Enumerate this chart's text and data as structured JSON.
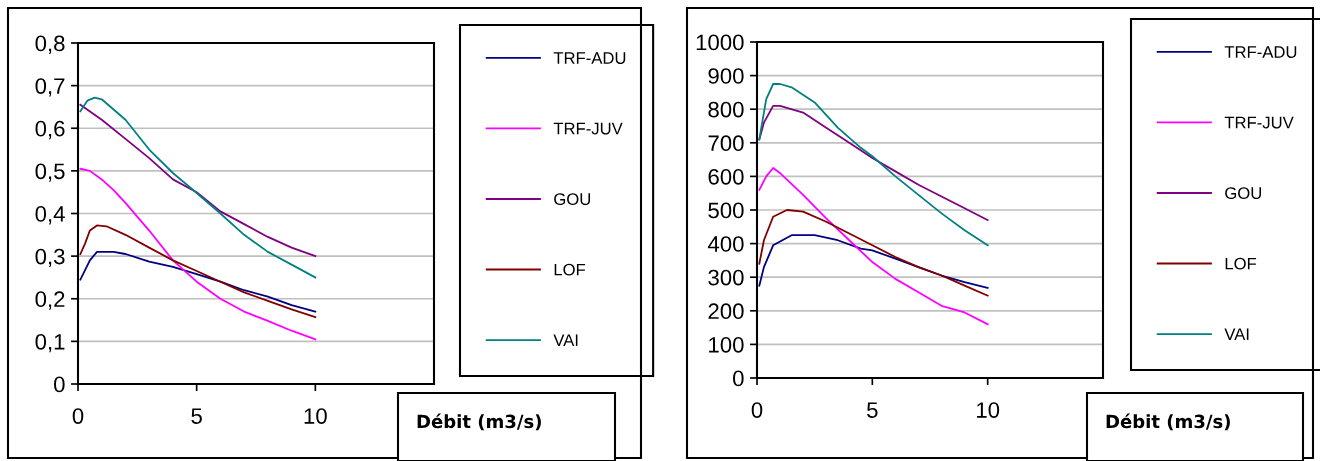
{
  "chart_data": [
    {
      "type": "line",
      "xlabel": "Débit (m3/s)",
      "xlim": [
        0,
        15
      ],
      "xticks": [
        0,
        5,
        10
      ],
      "ylim": [
        0,
        0.8
      ],
      "yticks": [
        {
          "value": 0,
          "label": "0"
        },
        {
          "value": 0.1,
          "label": "0,1"
        },
        {
          "value": 0.2,
          "label": "0,2"
        },
        {
          "value": 0.3,
          "label": "0,3"
        },
        {
          "value": 0.4,
          "label": "0,4"
        },
        {
          "value": 0.5,
          "label": "0,5"
        },
        {
          "value": 0.6,
          "label": "0,6"
        },
        {
          "value": 0.7,
          "label": "0,7"
        },
        {
          "value": 0.8,
          "label": "0,8"
        }
      ],
      "grid": "y",
      "legend": "right",
      "marker": "none",
      "line_style": "solid",
      "series": [
        {
          "name": "TRF-ADU",
          "color": "#000080",
          "x": [
            0.1,
            0.5,
            0.8,
            1.5,
            2,
            3,
            4,
            5,
            6,
            7,
            8,
            9,
            10
          ],
          "values": [
            0.245,
            0.29,
            0.31,
            0.31,
            0.305,
            0.287,
            0.275,
            0.258,
            0.24,
            0.22,
            0.205,
            0.185,
            0.17
          ]
        },
        {
          "name": "TRF-JUV",
          "color": "#ff00ff",
          "x": [
            0.1,
            0.5,
            1,
            1.5,
            2,
            3,
            4,
            5,
            6,
            7,
            8,
            9,
            10
          ],
          "values": [
            0.505,
            0.5,
            0.48,
            0.455,
            0.425,
            0.36,
            0.29,
            0.24,
            0.2,
            0.17,
            0.148,
            0.125,
            0.105
          ]
        },
        {
          "name": "GOU",
          "color": "#800080",
          "x": [
            0.1,
            1,
            2,
            3,
            4,
            5,
            6,
            7,
            8,
            9,
            10
          ],
          "values": [
            0.655,
            0.62,
            0.575,
            0.53,
            0.48,
            0.45,
            0.405,
            0.375,
            0.345,
            0.32,
            0.3
          ]
        },
        {
          "name": "LOF",
          "color": "#800000",
          "x": [
            0.1,
            0.3,
            0.5,
            0.8,
            1.2,
            2,
            3,
            4,
            5,
            6,
            7,
            8,
            9,
            10
          ],
          "values": [
            0.305,
            0.33,
            0.36,
            0.372,
            0.37,
            0.35,
            0.32,
            0.29,
            0.265,
            0.24,
            0.215,
            0.195,
            0.175,
            0.157
          ]
        },
        {
          "name": "VAI",
          "color": "#008080",
          "x": [
            0.1,
            0.4,
            0.7,
            1,
            2,
            3,
            4,
            5,
            6,
            7,
            8,
            9,
            10
          ],
          "values": [
            0.64,
            0.665,
            0.672,
            0.668,
            0.62,
            0.55,
            0.495,
            0.448,
            0.4,
            0.35,
            0.31,
            0.28,
            0.25
          ]
        }
      ]
    },
    {
      "type": "line",
      "xlabel": "Débit (m3/s)",
      "xlim": [
        0,
        15
      ],
      "xticks": [
        0,
        5,
        10
      ],
      "ylim": [
        0,
        1000
      ],
      "yticks": [
        0,
        100,
        200,
        300,
        400,
        500,
        600,
        700,
        800,
        900,
        1000
      ],
      "grid": "y",
      "legend": "right",
      "marker": "none",
      "line_style": "solid",
      "series": [
        {
          "name": "TRF-ADU",
          "color": "#000080",
          "x": [
            0.1,
            0.3,
            0.7,
            1.5,
            2.5,
            3.5,
            4.5,
            5,
            6,
            7,
            8,
            9,
            10
          ],
          "values": [
            275,
            330,
            395,
            425,
            425,
            410,
            385,
            380,
            355,
            330,
            305,
            285,
            268
          ]
        },
        {
          "name": "TRF-JUV",
          "color": "#ff00ff",
          "x": [
            0.1,
            0.4,
            0.7,
            1,
            2,
            3,
            4,
            5,
            6,
            7,
            8,
            9,
            10
          ],
          "values": [
            560,
            600,
            625,
            610,
            545,
            475,
            410,
            345,
            295,
            255,
            215,
            195,
            160
          ]
        },
        {
          "name": "GOU",
          "color": "#800080",
          "x": [
            0.1,
            0.3,
            0.7,
            1,
            2,
            3,
            4,
            5,
            6,
            7,
            8,
            9,
            10
          ],
          "values": [
            710,
            760,
            810,
            810,
            790,
            745,
            700,
            655,
            615,
            575,
            540,
            505,
            470
          ]
        },
        {
          "name": "LOF",
          "color": "#800000",
          "x": [
            0.1,
            0.3,
            0.7,
            1.3,
            2,
            3,
            4,
            5,
            6,
            7,
            8,
            9,
            10
          ],
          "values": [
            340,
            410,
            480,
            500,
            495,
            465,
            430,
            395,
            360,
            330,
            305,
            275,
            245
          ]
        },
        {
          "name": "VAI",
          "color": "#008080",
          "x": [
            0.1,
            0.4,
            0.7,
            1,
            1.5,
            2.5,
            3.5,
            4.5,
            5,
            6,
            7,
            8,
            9,
            10
          ],
          "values": [
            710,
            830,
            875,
            875,
            865,
            820,
            745,
            685,
            660,
            600,
            545,
            490,
            440,
            395
          ]
        }
      ]
    }
  ]
}
